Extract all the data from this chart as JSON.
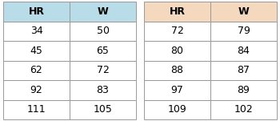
{
  "table1": {
    "headers": [
      "HR",
      "W"
    ],
    "rows": [
      [
        "34",
        "50"
      ],
      [
        "45",
        "65"
      ],
      [
        "62",
        "72"
      ],
      [
        "92",
        "83"
      ],
      [
        "111",
        "105"
      ]
    ],
    "header_color": "#b8dde8",
    "row_color": "#ffffff",
    "border_color": "#999999"
  },
  "table2": {
    "headers": [
      "HR",
      "W"
    ],
    "rows": [
      [
        "72",
        "79"
      ],
      [
        "80",
        "84"
      ],
      [
        "88",
        "87"
      ],
      [
        "97",
        "89"
      ],
      [
        "109",
        "102"
      ]
    ],
    "header_color": "#f5d9be",
    "row_color": "#ffffff",
    "border_color": "#999999"
  },
  "font_size": 9,
  "header_font_size": 9
}
